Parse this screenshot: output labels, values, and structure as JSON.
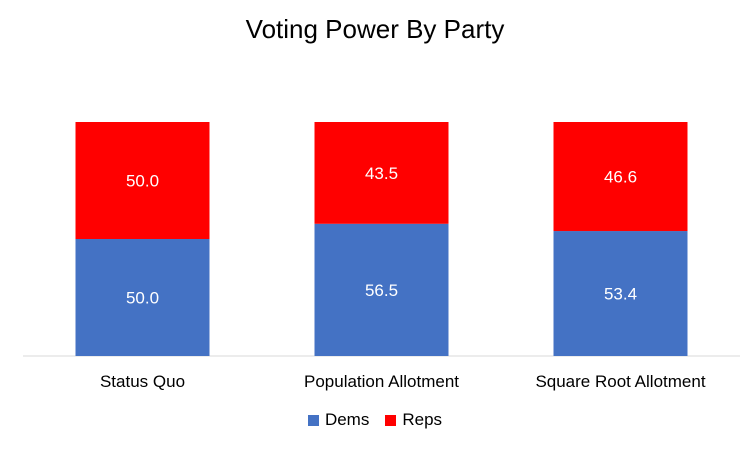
{
  "chart_data": {
    "type": "bar",
    "stacked": true,
    "title": "Voting Power By Party",
    "categories": [
      "Status Quo",
      "Population Allotment",
      "Square Root Allotment"
    ],
    "series": [
      {
        "name": "Dems",
        "color": "#4472C4",
        "values": [
          50.0,
          56.5,
          53.4
        ]
      },
      {
        "name": "Reps",
        "color": "#FF0000",
        "values": [
          50.0,
          43.5,
          46.6
        ]
      }
    ],
    "data_labels": true,
    "ylim": [
      0,
      100
    ],
    "grid": false,
    "legend_position": "bottom"
  }
}
